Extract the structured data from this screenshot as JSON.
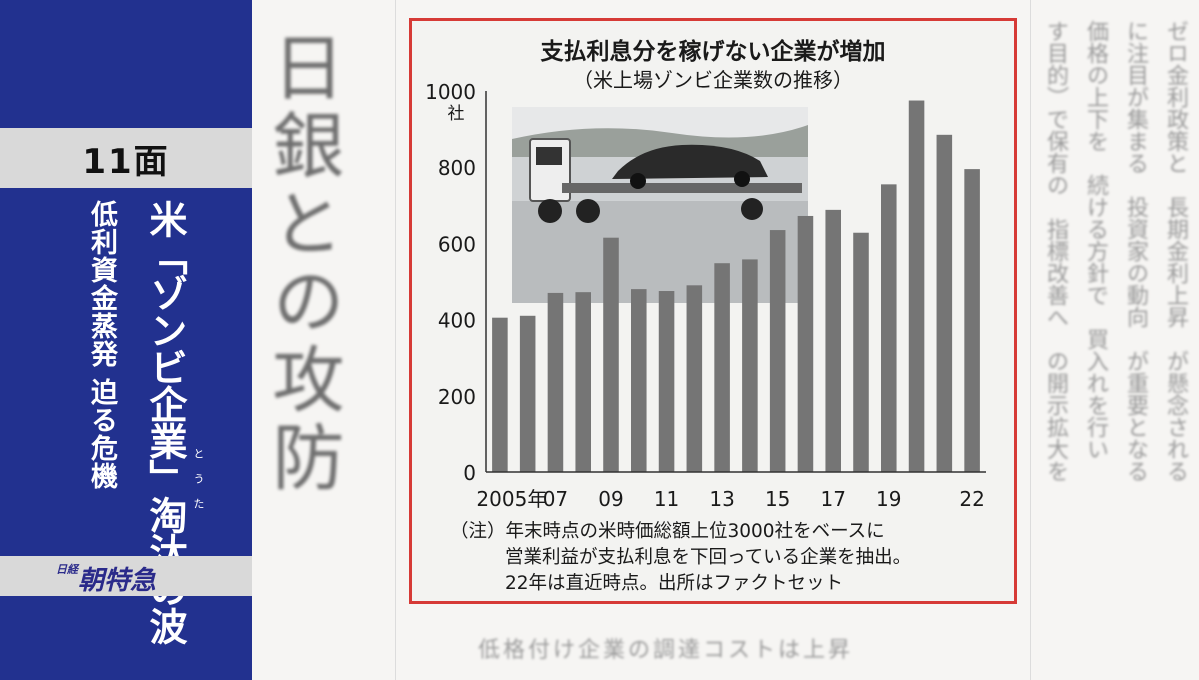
{
  "side_panel": {
    "page_label": "11面",
    "headline": "米「ゾンビ企業」淘汰の波",
    "ruby": "とうた",
    "subheadline": "低利資金蒸発 迫る危機",
    "brand": "朝特急",
    "brand_mark": "日経"
  },
  "background": {
    "big_heading": "日銀との攻防",
    "bottom_text": "低格付け企業の調達コストは上昇"
  },
  "chart_data": {
    "type": "bar",
    "title": "支払利息分を稼げない企業が増加",
    "subtitle": "（米上場ゾンビ企業数の推移）",
    "ylabel": "社",
    "ylim": [
      0,
      1000
    ],
    "yticks": [
      "1000",
      "800",
      "600",
      "400",
      "200",
      "0"
    ],
    "x": [
      "2005",
      "2006",
      "2007",
      "2008",
      "2009",
      "2010",
      "2011",
      "2012",
      "2013",
      "2014",
      "2015",
      "2016",
      "2017",
      "2018",
      "2019",
      "2020",
      "2021",
      "2022"
    ],
    "xtick_labels": [
      "2005年",
      "07",
      "09",
      "11",
      "13",
      "15",
      "17",
      "19",
      "22"
    ],
    "values": [
      405,
      410,
      470,
      472,
      615,
      480,
      475,
      490,
      548,
      558,
      635,
      672,
      688,
      628,
      755,
      975,
      885,
      795
    ],
    "bar_color": "#757575",
    "notes": [
      "（注）年末時点の米時価総額上位3000社をベースに",
      "営業利益が支払利息を下回っている企業を抽出。",
      "22年は直近時点。出所はファクトセット"
    ]
  }
}
